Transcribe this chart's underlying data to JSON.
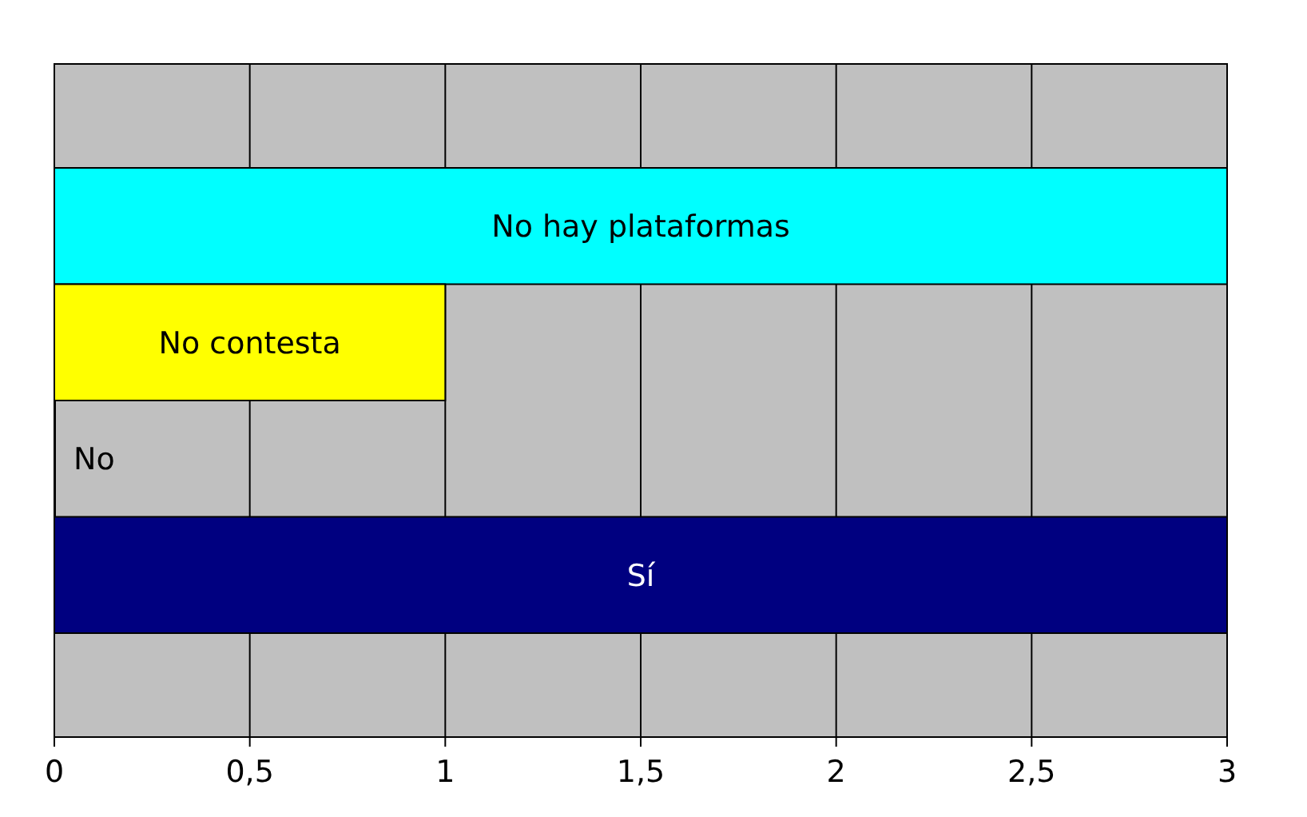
{
  "chart_data": {
    "type": "bar",
    "orientation": "horizontal",
    "categories": [
      "No hay plataformas",
      "No contesta",
      "No",
      "Sí"
    ],
    "values": [
      3,
      1,
      0,
      3
    ],
    "colors": [
      "#00ffff",
      "#ffff00",
      "#551a3a",
      "#000080"
    ],
    "xlim": [
      0,
      3
    ],
    "xticks": [
      0,
      {
        "value": 0.5,
        "label": "0,5"
      },
      1,
      {
        "value": 1.5,
        "label": "1,5"
      },
      2,
      {
        "value": 2.5,
        "label": "2,5"
      },
      3
    ],
    "grid": "x"
  }
}
